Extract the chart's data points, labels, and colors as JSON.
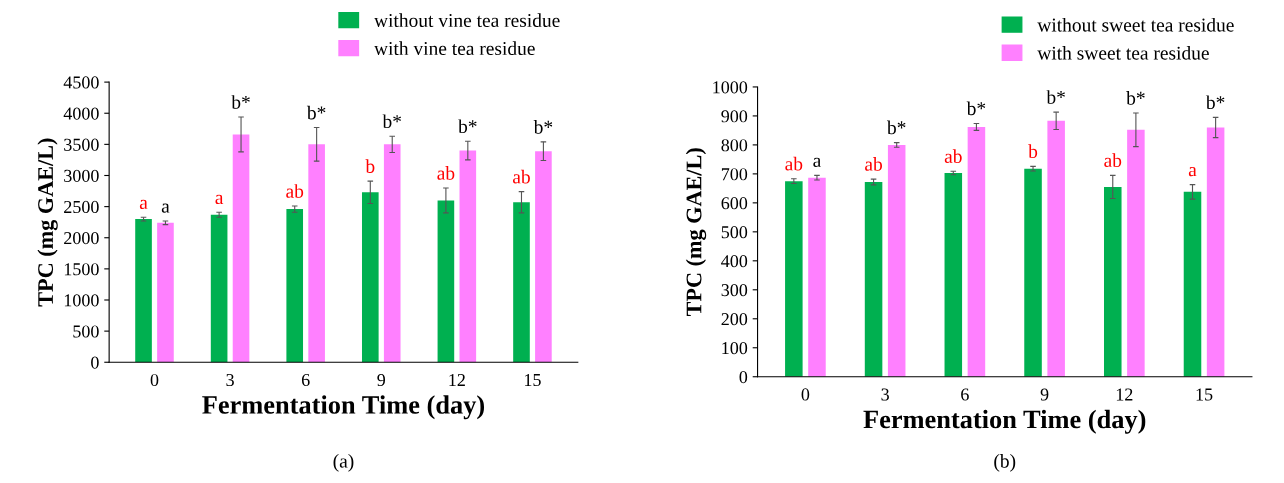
{
  "chart_data": [
    {
      "type": "bar",
      "xlabel": "Fermentation Time (day)",
      "ylabel": "TPC (mg GAE/L)",
      "categories": [
        "0",
        "3",
        "6",
        "9",
        "12",
        "15"
      ],
      "ylim": [
        0,
        4500
      ],
      "yticks": [
        0,
        500,
        1000,
        1500,
        2000,
        2500,
        3000,
        3500,
        4000,
        4500
      ],
      "grid": false,
      "legend": "top right",
      "series": [
        {
          "name": "without vine tea residue",
          "color": "#00b050",
          "values": [
            2300,
            2370,
            2460,
            2730,
            2600,
            2570
          ],
          "errors": [
            30,
            40,
            50,
            180,
            200,
            170
          ],
          "value_labels": [
            "a",
            "a",
            "ab",
            "b",
            "ab",
            "ab"
          ]
        },
        {
          "name": "with vine tea residue",
          "color": "#ff80ff",
          "values": [
            2240,
            3660,
            3500,
            3500,
            3400,
            3390
          ],
          "errors": [
            30,
            280,
            270,
            130,
            150,
            150
          ],
          "value_labels": [
            "a",
            "b*",
            "b*",
            "b*",
            "b*",
            "b*"
          ]
        }
      ],
      "annotations": [
        "(a)"
      ]
    },
    {
      "type": "bar",
      "xlabel": "Fermentation Time (day)",
      "ylabel": "TPC (mg GAE/L)",
      "categories": [
        "0",
        "3",
        "6",
        "9",
        "12",
        "15"
      ],
      "ylim": [
        0,
        1000
      ],
      "yticks": [
        0,
        100,
        200,
        300,
        400,
        500,
        600,
        700,
        800,
        900,
        1000
      ],
      "grid": false,
      "legend": "top right",
      "series": [
        {
          "name": "without sweet tea residue",
          "color": "#00b050",
          "values": [
            675,
            672,
            703,
            718,
            655,
            638
          ],
          "errors": [
            8,
            10,
            6,
            8,
            40,
            25
          ],
          "value_labels": [
            "ab",
            "ab",
            "ab",
            "b",
            "ab",
            "a"
          ]
        },
        {
          "name": "with sweet tea residue",
          "color": "#ff80ff",
          "values": [
            687,
            800,
            862,
            883,
            852,
            860
          ],
          "errors": [
            8,
            8,
            12,
            30,
            58,
            35
          ],
          "value_labels": [
            "a",
            "b*",
            "b*",
            "b*",
            "b*",
            "b*"
          ]
        }
      ],
      "annotations": [
        "(b)"
      ]
    }
  ]
}
